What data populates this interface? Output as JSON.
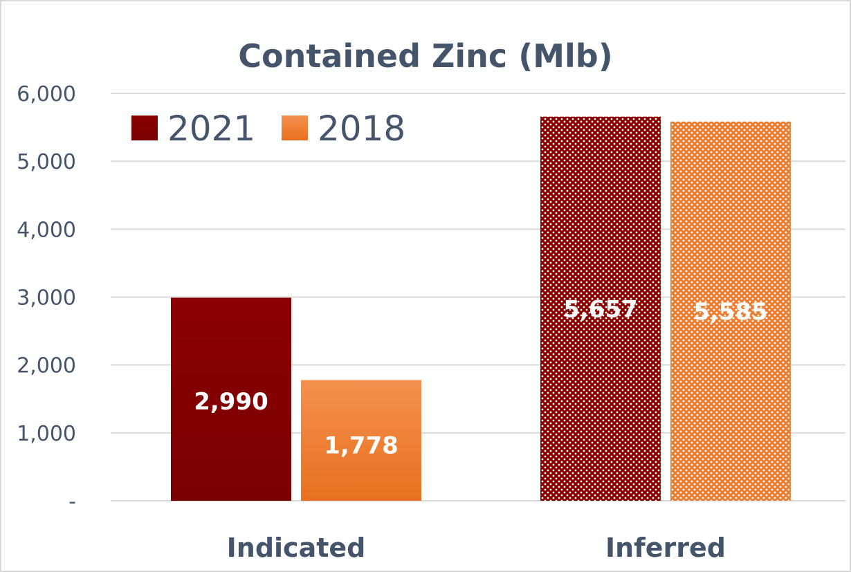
{
  "chart_data": {
    "type": "bar",
    "title": "Contained Zinc (Mlb)",
    "categories": [
      "Indicated",
      "Inferred"
    ],
    "series": [
      {
        "name": "2021",
        "values": [
          2990,
          5657
        ],
        "labels": [
          "2,990",
          "5,657"
        ],
        "color": "#8b0000"
      },
      {
        "name": "2018",
        "values": [
          1778,
          5585
        ],
        "labels": [
          "1,778",
          "5,585"
        ],
        "color": "#ed7d31"
      }
    ],
    "ylim": [
      0,
      6000
    ],
    "yticks": [
      0,
      1000,
      2000,
      3000,
      4000,
      5000,
      6000
    ],
    "ytick_labels": [
      "-",
      "1,000",
      "2,000",
      "3,000",
      "4,000",
      "5,000",
      "6,000"
    ],
    "grid": true,
    "legend_position": "top-left",
    "pattern_note": "Inferred bars use dotted fill"
  }
}
